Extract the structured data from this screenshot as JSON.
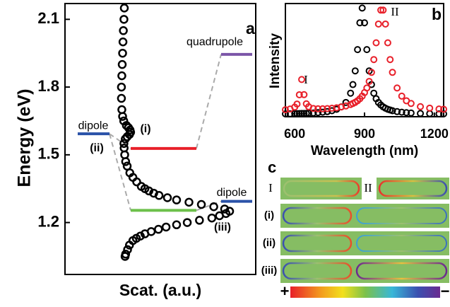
{
  "chart_data": [
    {
      "type": "scatter",
      "panel_label": "a",
      "xlabel": "Scat. (a.u.)",
      "ylabel": "Energy (eV)",
      "xlim": [
        0,
        1
      ],
      "ylim": [
        0.97,
        2.17
      ],
      "yticks": [
        1.2,
        1.5,
        1.8,
        2.1
      ],
      "series": [
        {
          "color": "#000000",
          "x": [
            0.311,
            0.309,
            0.306,
            0.304,
            0.302,
            0.3,
            0.298,
            0.296,
            0.296,
            0.298,
            0.302,
            0.308,
            0.322,
            0.333,
            0.341,
            0.344,
            0.338,
            0.326,
            0.316,
            0.309,
            0.31,
            0.313,
            0.318,
            0.326,
            0.34,
            0.356,
            0.376,
            0.4,
            0.419,
            0.44,
            0.465,
            0.493,
            0.537,
            0.585,
            0.65,
            0.715,
            0.78,
            0.837,
            0.863,
            0.844,
            0.81,
            0.77,
            0.705,
            0.641,
            0.585,
            0.53,
            0.49,
            0.452,
            0.419,
            0.395,
            0.374,
            0.356,
            0.338,
            0.328,
            0.318,
            0.315
          ],
          "values": [
            2.15,
            2.1,
            2.05,
            2.0,
            1.95,
            1.9,
            1.85,
            1.8,
            1.75,
            1.7,
            1.67,
            1.65,
            1.63,
            1.62,
            1.61,
            1.6,
            1.59,
            1.58,
            1.57,
            1.55,
            1.53,
            1.5,
            1.47,
            1.45,
            1.42,
            1.4,
            1.38,
            1.36,
            1.35,
            1.34,
            1.33,
            1.32,
            1.31,
            1.3,
            1.29,
            1.28,
            1.27,
            1.26,
            1.25,
            1.24,
            1.23,
            1.22,
            1.21,
            1.2,
            1.19,
            1.18,
            1.17,
            1.16,
            1.15,
            1.14,
            1.13,
            1.12,
            1.1,
            1.08,
            1.06,
            1.05
          ]
        }
      ],
      "levels": [
        {
          "value": 1.593,
          "color": "#2a52a8",
          "label": "dipole"
        },
        {
          "value": 1.528,
          "color": "#e8202a"
        },
        {
          "value": 1.945,
          "color": "#7b55a8",
          "label": "quadrupole"
        },
        {
          "value": 1.254,
          "color": "#6cc04a"
        },
        {
          "value": 1.294,
          "color": "#2a52a8",
          "label": "dipole"
        }
      ],
      "annotations": [
        "(i)",
        "(ii)",
        "(iii)"
      ]
    },
    {
      "type": "scatter",
      "panel_label": "b",
      "xlabel": "Wavelength (nm)",
      "ylabel": "Intensity",
      "xlim": [
        560,
        1240
      ],
      "ylim": [
        0,
        1
      ],
      "xticks": [
        600,
        900,
        1200
      ],
      "x": [
        560,
        580,
        600,
        610,
        620,
        630,
        640,
        650,
        660,
        680,
        700,
        720,
        740,
        760,
        780,
        800,
        820,
        840,
        850,
        860,
        870,
        880,
        890,
        900,
        910,
        920,
        930,
        940,
        950,
        960,
        970,
        980,
        990,
        1000,
        1010,
        1020,
        1040,
        1060,
        1080,
        1100,
        1140,
        1180,
        1220,
        1240
      ],
      "series": [
        {
          "color": "#000000",
          "values": [
            0.025,
            0.026,
            0.027,
            0.027,
            0.028,
            0.029,
            0.029,
            0.03,
            0.031,
            0.033,
            0.036,
            0.04,
            0.045,
            0.053,
            0.066,
            0.087,
            0.126,
            0.208,
            0.284,
            0.405,
            0.593,
            0.83,
            0.96,
            0.83,
            0.593,
            0.405,
            0.284,
            0.208,
            0.159,
            0.126,
            0.104,
            0.087,
            0.075,
            0.066,
            0.059,
            0.053,
            0.045,
            0.04,
            0.036,
            0.033,
            0.029,
            0.027,
            0.025,
            0.025
          ]
        },
        {
          "color": "#e8202a",
          "values": [
            0.062,
            0.068,
            0.085,
            0.112,
            0.194,
            0.329,
            0.195,
            0.114,
            0.088,
            0.073,
            0.07,
            0.07,
            0.072,
            0.075,
            0.079,
            0.086,
            0.095,
            0.108,
            0.117,
            0.127,
            0.141,
            0.159,
            0.182,
            0.213,
            0.254,
            0.312,
            0.392,
            0.505,
            0.653,
            0.819,
            0.942,
            0.942,
            0.819,
            0.653,
            0.505,
            0.392,
            0.254,
            0.182,
            0.141,
            0.117,
            0.089,
            0.076,
            0.068,
            0.066
          ]
        }
      ],
      "annotations": [
        "I",
        "II"
      ]
    }
  ],
  "field_maps": {
    "panel_label": "c",
    "top_labels": [
      "I",
      "II"
    ],
    "row_labels": [
      "(i)",
      "(ii)",
      "(iii)"
    ],
    "colorbar": {
      "min_label": "+",
      "max_label": "−"
    }
  }
}
